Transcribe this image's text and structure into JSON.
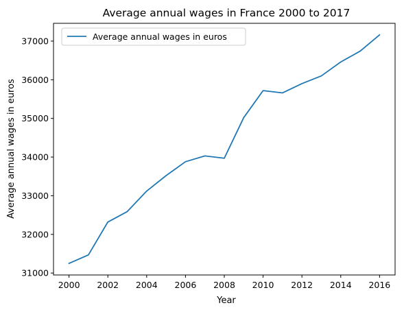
{
  "chart_data": {
    "type": "line",
    "title": "Average annual wages in France 2000 to 2017",
    "xlabel": "Year",
    "ylabel": "Average annual wages in euros",
    "x": [
      2000,
      2001,
      2002,
      2003,
      2004,
      2005,
      2006,
      2007,
      2008,
      2009,
      2010,
      2011,
      2012,
      2013,
      2014,
      2015,
      2016
    ],
    "series": [
      {
        "name": "Average annual wages in euros",
        "color": "#1f77b4",
        "values": [
          31250,
          31470,
          32320,
          32590,
          33120,
          33520,
          33880,
          34030,
          33970,
          35020,
          35720,
          35660,
          35900,
          36100,
          36460,
          36740,
          37160
        ]
      }
    ],
    "xticks": [
      "2000",
      "2002",
      "2004",
      "2006",
      "2008",
      "2010",
      "2012",
      "2014",
      "2016"
    ],
    "yticks": [
      "31000",
      "32000",
      "33000",
      "34000",
      "35000",
      "36000",
      "37000"
    ],
    "xlim": [
      1999.2,
      2016.8
    ],
    "ylim": [
      30950,
      37460
    ],
    "grid": false,
    "legend_position": "top-left"
  }
}
